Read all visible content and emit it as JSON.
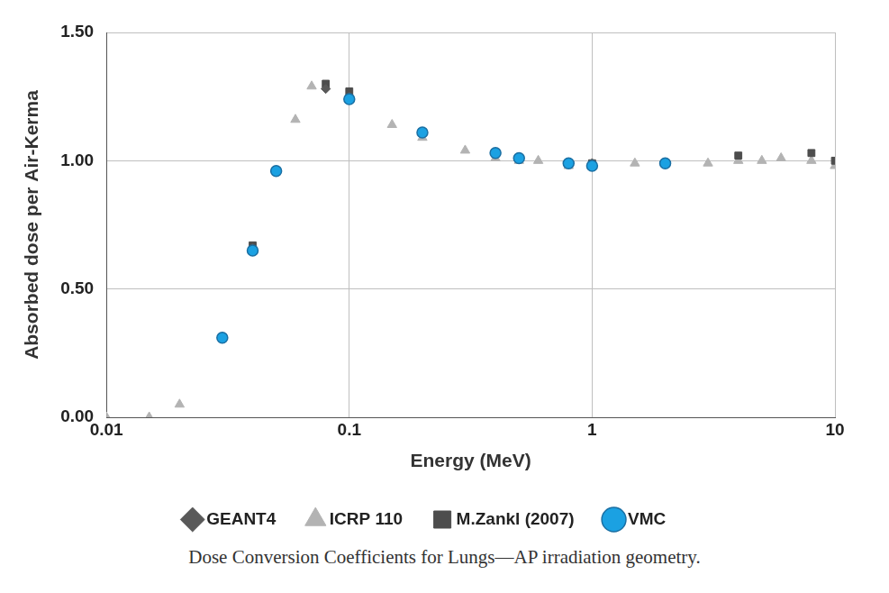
{
  "chart_data": {
    "type": "scatter",
    "caption": "Dose Conversion Coefficients for Lungs—AP irradiation geometry.",
    "x_label": "Energy (MeV)",
    "y_label": "Absorbed dose per Air-Kerma",
    "log": "x",
    "grid": true,
    "legend": "bottom",
    "xlim": [
      0.01,
      10
    ],
    "xticks": [
      0.01,
      0.1,
      1,
      10
    ],
    "ylim": [
      0,
      1.5
    ],
    "yticks": [
      {
        "value": 0,
        "label": "0.00"
      },
      {
        "value": 0.5,
        "label": "0.50"
      },
      {
        "value": 1,
        "label": "1.00"
      },
      {
        "value": 1.5,
        "label": "1.50"
      }
    ],
    "series": [
      {
        "name": "GEANT4",
        "color": "#595959",
        "marker": "diamond",
        "x": [
          0.03,
          0.04,
          0.05,
          0.08,
          0.1,
          0.2,
          0.4,
          0.5,
          0.8,
          1,
          2
        ],
        "values": [
          0.31,
          0.66,
          0.96,
          1.28,
          1.25,
          1.11,
          1.03,
          1.01,
          0.99,
          0.99,
          0.99
        ]
      },
      {
        "name": "ICRP 110",
        "color": "#b3b3b3",
        "marker": "triangle",
        "x": [
          0.01,
          0.015,
          0.02,
          0.03,
          0.04,
          0.05,
          0.06,
          0.07,
          0.08,
          0.1,
          0.15,
          0.2,
          0.3,
          0.4,
          0.5,
          0.6,
          0.8,
          1,
          1.5,
          2,
          3,
          4,
          5,
          6,
          8,
          10
        ],
        "values": [
          0.0,
          0.0,
          0.05,
          0.31,
          0.66,
          0.96,
          1.16,
          1.29,
          1.29,
          1.25,
          1.14,
          1.09,
          1.04,
          1.01,
          1.0,
          1.0,
          0.98,
          0.99,
          0.99,
          0.99,
          0.99,
          1.0,
          1.0,
          1.01,
          1.0,
          0.98
        ]
      },
      {
        "name": "M.Zankl (2007)",
        "color": "#4d4d4d",
        "marker": "square",
        "x": [
          0.03,
          0.04,
          0.05,
          0.08,
          0.1,
          0.2,
          0.4,
          0.5,
          0.8,
          1,
          2,
          4,
          8,
          10
        ],
        "values": [
          0.31,
          0.67,
          0.96,
          1.3,
          1.27,
          1.11,
          1.03,
          1.01,
          0.99,
          0.99,
          0.99,
          1.02,
          1.03,
          1.0
        ]
      },
      {
        "name": "VMC",
        "color": "#1ba1e2",
        "marker": "circle",
        "x": [
          0.03,
          0.04,
          0.05,
          0.1,
          0.2,
          0.4,
          0.5,
          0.8,
          1,
          2
        ],
        "values": [
          0.31,
          0.65,
          0.96,
          1.24,
          1.11,
          1.03,
          1.01,
          0.99,
          0.98,
          0.99
        ]
      }
    ]
  }
}
